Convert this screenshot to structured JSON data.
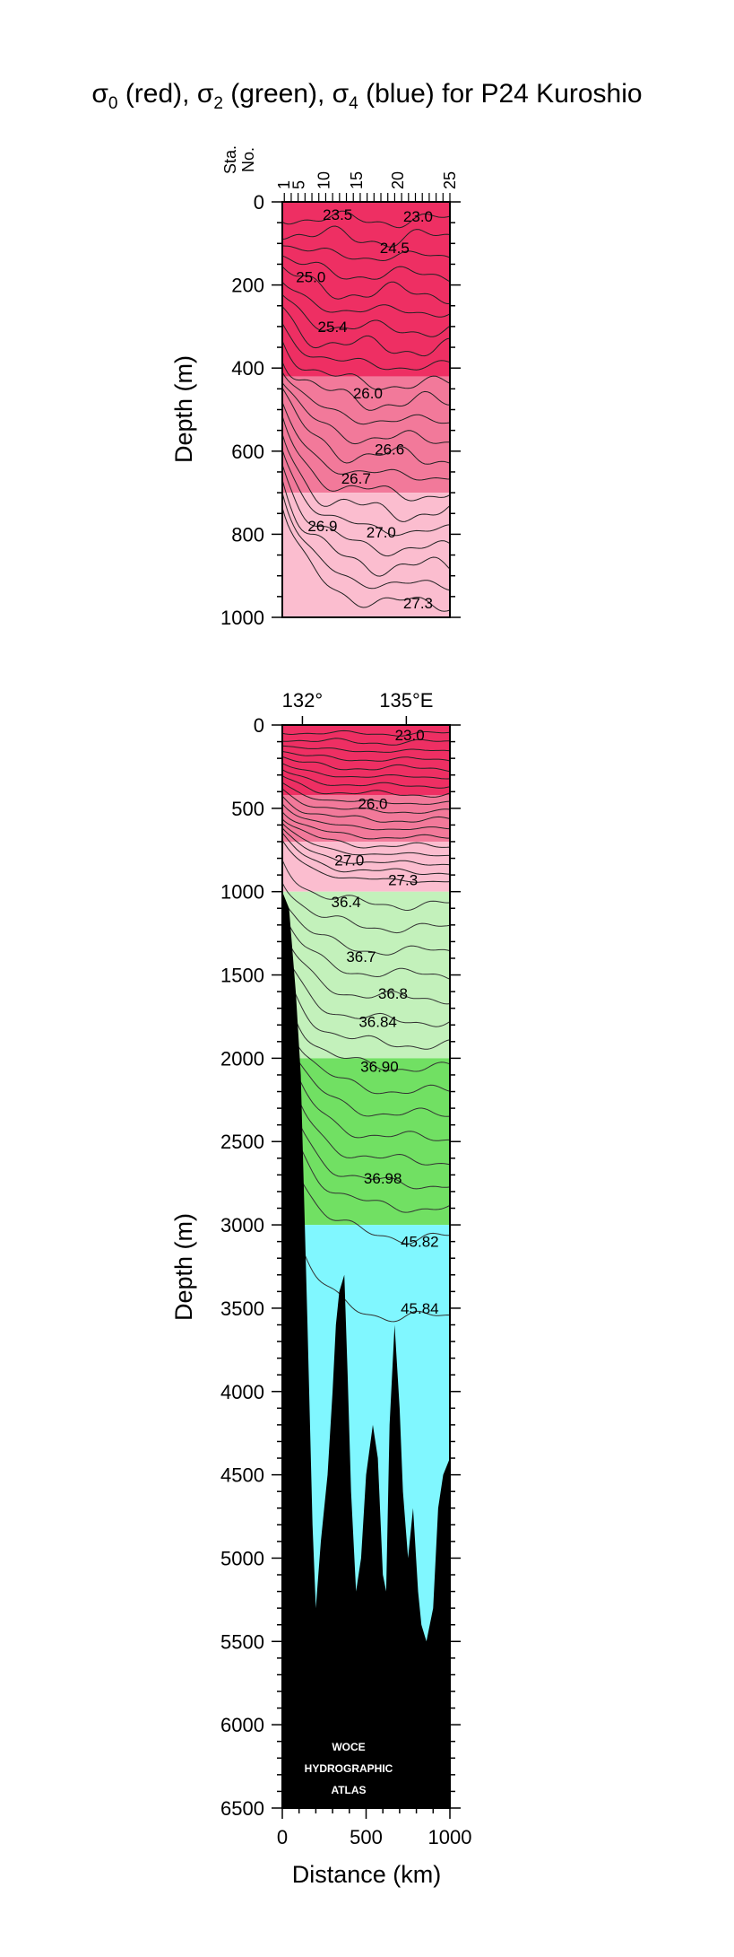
{
  "title": {
    "s0": "σ",
    "s0_sub": "0",
    "s0_txt": " (red), ",
    "s2": "σ",
    "s2_sub": "2",
    "s2_txt": " (green), ",
    "s4": "σ",
    "s4_sub": "4",
    "s4_txt": " (blue) for P24 Kuroshio"
  },
  "colors": {
    "sigma0_dark": "#ee2f63",
    "sigma0_mid": "#f2799a",
    "sigma0_light": "#fbbdcf",
    "sigma2_light": "#c3f1bb",
    "sigma2_dark": "#71e063",
    "sigma4": "#80f7ff",
    "topography": "#000000"
  },
  "chart_data": [
    {
      "type": "heatmap",
      "name": "upper",
      "ylabel": "Depth (m)",
      "ylim": [
        1000,
        0
      ],
      "xlim": [
        0,
        1000
      ],
      "yticks": [
        0,
        200,
        400,
        600,
        800,
        1000
      ],
      "station_label": "Sta.\nNo.",
      "station_label_line1": "Sta.",
      "station_label_line2": "No.",
      "stations": [
        {
          "label": "1",
          "km": 12
        },
        {
          "label": "5",
          "km": 98
        },
        {
          "label": "10",
          "km": 248
        },
        {
          "label": "15",
          "km": 445
        },
        {
          "label": "20",
          "km": 690
        },
        {
          "label": "25",
          "km": 1000
        }
      ],
      "contour_labels": [
        {
          "text": "23.5",
          "x": 330,
          "y": 30
        },
        {
          "text": "23.0",
          "x": 810,
          "y": 35
        },
        {
          "text": "24.5",
          "x": 670,
          "y": 110
        },
        {
          "text": "25.0",
          "x": 170,
          "y": 180
        },
        {
          "text": "25.4",
          "x": 300,
          "y": 300
        },
        {
          "text": "26.0",
          "x": 510,
          "y": 460
        },
        {
          "text": "26.6",
          "x": 640,
          "y": 595
        },
        {
          "text": "26.7",
          "x": 440,
          "y": 665
        },
        {
          "text": "26.9",
          "x": 240,
          "y": 780
        },
        {
          "text": "27.0",
          "x": 590,
          "y": 795
        },
        {
          "text": "27.3",
          "x": 810,
          "y": 965
        }
      ]
    },
    {
      "type": "heatmap",
      "name": "full",
      "ylabel": "Depth (m)",
      "xlabel": "Distance (km)",
      "ylim": [
        6500,
        0
      ],
      "xlim": [
        0,
        1000
      ],
      "yticks": [
        0,
        500,
        1000,
        1500,
        2000,
        2500,
        3000,
        3500,
        4000,
        4500,
        5000,
        5500,
        6000,
        6500
      ],
      "xticks": [
        0,
        500,
        1000
      ],
      "longitudes": [
        {
          "label": "132°",
          "km": 120
        },
        {
          "label": "135°E",
          "km": 740
        }
      ],
      "layers": [
        {
          "name": "σ0",
          "from": 0,
          "to": 1000
        },
        {
          "name": "σ2",
          "from": 1000,
          "to": 3000
        },
        {
          "name": "σ4",
          "from": 3000,
          "to": 6500
        }
      ],
      "contour_labels": [
        {
          "text": "23.0",
          "x": 760,
          "y": 60
        },
        {
          "text": "26.0",
          "x": 540,
          "y": 470
        },
        {
          "text": "27.0",
          "x": 400,
          "y": 810
        },
        {
          "text": "27.3",
          "x": 720,
          "y": 930
        },
        {
          "text": "36.4",
          "x": 380,
          "y": 1060
        },
        {
          "text": "36.7",
          "x": 470,
          "y": 1390
        },
        {
          "text": "36.8",
          "x": 660,
          "y": 1610
        },
        {
          "text": "36.84",
          "x": 570,
          "y": 1780
        },
        {
          "text": "36.90",
          "x": 580,
          "y": 2050
        },
        {
          "text": "36.98",
          "x": 600,
          "y": 2720
        },
        {
          "text": "45.82",
          "x": 820,
          "y": 3100
        },
        {
          "text": "45.84",
          "x": 820,
          "y": 3500
        }
      ],
      "bottom_depth_profile": [
        [
          0,
          1000
        ],
        [
          40,
          1100
        ],
        [
          80,
          1600
        ],
        [
          110,
          2100
        ],
        [
          150,
          3600
        ],
        [
          180,
          4800
        ],
        [
          200,
          5300
        ],
        [
          230,
          4900
        ],
        [
          270,
          4500
        ],
        [
          300,
          4000
        ],
        [
          320,
          3600
        ],
        [
          340,
          3400
        ],
        [
          370,
          3300
        ],
        [
          390,
          3900
        ],
        [
          410,
          4600
        ],
        [
          440,
          5200
        ],
        [
          470,
          5000
        ],
        [
          500,
          4500
        ],
        [
          540,
          4200
        ],
        [
          570,
          4400
        ],
        [
          600,
          5100
        ],
        [
          620,
          5200
        ],
        [
          640,
          4200
        ],
        [
          670,
          3600
        ],
        [
          700,
          4100
        ],
        [
          720,
          4600
        ],
        [
          750,
          5000
        ],
        [
          780,
          4700
        ],
        [
          810,
          5200
        ],
        [
          830,
          5400
        ],
        [
          860,
          5500
        ],
        [
          900,
          5300
        ],
        [
          930,
          4700
        ],
        [
          960,
          4500
        ],
        [
          1000,
          4400
        ]
      ]
    }
  ],
  "watermark": {
    "line1": "WOCE",
    "line2": "HYDROGRAPHIC",
    "line3": "ATLAS"
  }
}
